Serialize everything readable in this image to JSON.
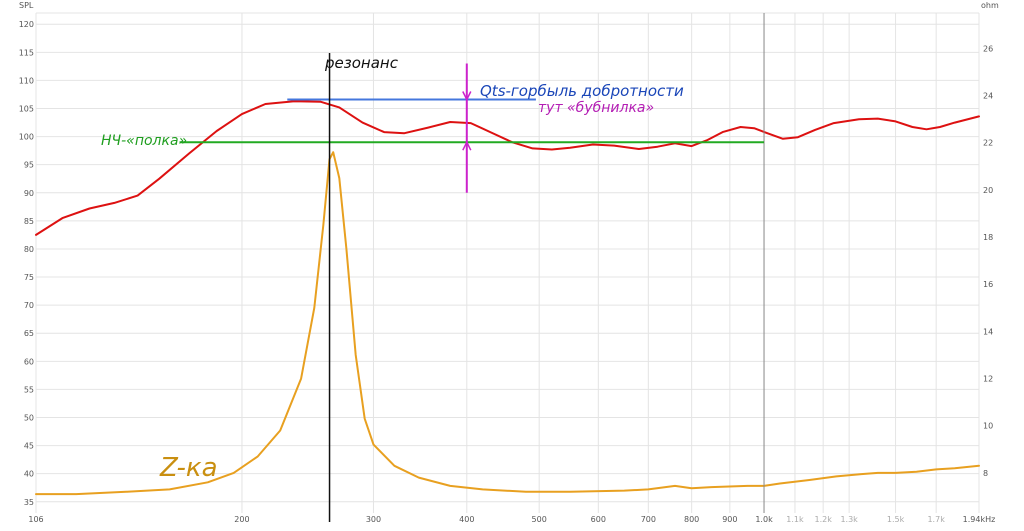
{
  "chart_data": {
    "type": "line",
    "x_scale": "log",
    "xlim": [
      106,
      1940
    ],
    "ylim_left": [
      33,
      122
    ],
    "ylim_right": [
      6.3,
      27.5
    ],
    "ylabel_left": "SPL",
    "ylabel_right": "ohm",
    "grid": true,
    "x_ticks": [
      {
        "v": 106,
        "label": "106",
        "faint": false
      },
      {
        "v": 200,
        "label": "200",
        "faint": false
      },
      {
        "v": 300,
        "label": "300",
        "faint": false
      },
      {
        "v": 400,
        "label": "400",
        "faint": false
      },
      {
        "v": 500,
        "label": "500",
        "faint": false
      },
      {
        "v": 600,
        "label": "600",
        "faint": false
      },
      {
        "v": 700,
        "label": "700",
        "faint": false
      },
      {
        "v": 800,
        "label": "800",
        "faint": false
      },
      {
        "v": 900,
        "label": "900",
        "faint": false
      },
      {
        "v": 1000,
        "label": "1.0k",
        "faint": false
      },
      {
        "v": 1100,
        "label": "1.1k",
        "faint": true
      },
      {
        "v": 1200,
        "label": "1.2k",
        "faint": true
      },
      {
        "v": 1300,
        "label": "1.3k",
        "faint": true
      },
      {
        "v": 1500,
        "label": "1.5k",
        "faint": true
      },
      {
        "v": 1700,
        "label": "1.7k",
        "faint": true
      },
      {
        "v": 1940,
        "label": "1.94kHz",
        "faint": false
      }
    ],
    "y_ticks_left": [
      "35",
      "40",
      "45",
      "50",
      "55",
      "60",
      "65",
      "70",
      "75",
      "80",
      "85",
      "90",
      "95",
      "100",
      "105",
      "110",
      "115",
      "120"
    ],
    "y_ticks_right": [
      "8",
      "10",
      "12",
      "14",
      "16",
      "18",
      "20",
      "22",
      "24",
      "26"
    ],
    "series": [
      {
        "axis": "left",
        "color": "#dd1111",
        "points": [
          [
            106,
            82.5
          ],
          [
            115,
            85.5
          ],
          [
            125,
            87.2
          ],
          [
            135,
            88.2
          ],
          [
            145,
            89.5
          ],
          [
            155,
            92.5
          ],
          [
            170,
            97
          ],
          [
            185,
            101
          ],
          [
            200,
            104
          ],
          [
            215,
            105.8
          ],
          [
            235,
            106.3
          ],
          [
            255,
            106.2
          ],
          [
            270,
            105.2
          ],
          [
            290,
            102.5
          ],
          [
            310,
            100.8
          ],
          [
            330,
            100.6
          ],
          [
            355,
            101.6
          ],
          [
            380,
            102.6
          ],
          [
            405,
            102.4
          ],
          [
            430,
            100.8
          ],
          [
            460,
            99
          ],
          [
            490,
            97.9
          ],
          [
            520,
            97.7
          ],
          [
            550,
            98
          ],
          [
            590,
            98.6
          ],
          [
            630,
            98.4
          ],
          [
            680,
            97.8
          ],
          [
            720,
            98.2
          ],
          [
            760,
            98.8
          ],
          [
            800,
            98.3
          ],
          [
            840,
            99.4
          ],
          [
            880,
            100.8
          ],
          [
            930,
            101.7
          ],
          [
            970,
            101.5
          ],
          [
            1010,
            100.6
          ],
          [
            1060,
            99.6
          ],
          [
            1110,
            99.9
          ],
          [
            1170,
            101.2
          ],
          [
            1240,
            102.4
          ],
          [
            1340,
            103.1
          ],
          [
            1420,
            103.2
          ],
          [
            1500,
            102.7
          ],
          [
            1580,
            101.7
          ],
          [
            1650,
            101.3
          ],
          [
            1720,
            101.7
          ],
          [
            1800,
            102.5
          ],
          [
            1900,
            103.3
          ],
          [
            1940,
            103.6
          ]
        ]
      },
      {
        "axis": "right",
        "color": "#e8a020",
        "points": [
          [
            106,
            7.1
          ],
          [
            120,
            7.1
          ],
          [
            140,
            7.2
          ],
          [
            160,
            7.3
          ],
          [
            180,
            7.6
          ],
          [
            195,
            8.0
          ],
          [
            210,
            8.7
          ],
          [
            225,
            9.8
          ],
          [
            240,
            12.0
          ],
          [
            250,
            15.0
          ],
          [
            257,
            18.5
          ],
          [
            262,
            21.3
          ],
          [
            265,
            21.6
          ],
          [
            270,
            20.5
          ],
          [
            276,
            17.5
          ],
          [
            284,
            13.0
          ],
          [
            292,
            10.3
          ],
          [
            300,
            9.2
          ],
          [
            320,
            8.3
          ],
          [
            345,
            7.8
          ],
          [
            380,
            7.45
          ],
          [
            420,
            7.3
          ],
          [
            480,
            7.2
          ],
          [
            550,
            7.2
          ],
          [
            650,
            7.25
          ],
          [
            700,
            7.3
          ],
          [
            760,
            7.45
          ],
          [
            800,
            7.35
          ],
          [
            850,
            7.4
          ],
          [
            950,
            7.45
          ],
          [
            1000,
            7.45
          ],
          [
            1050,
            7.55
          ],
          [
            1150,
            7.7
          ],
          [
            1250,
            7.85
          ],
          [
            1350,
            7.95
          ],
          [
            1420,
            8.0
          ],
          [
            1500,
            8.0
          ],
          [
            1600,
            8.05
          ],
          [
            1700,
            8.15
          ],
          [
            1800,
            8.2
          ],
          [
            1940,
            8.3
          ]
        ]
      }
    ],
    "annotations": [
      {
        "text": "резонанс",
        "color": "#111111",
        "x": 262
      },
      {
        "text": "Qts-горбыль добротности",
        "color": "#1a46b8"
      },
      {
        "text": "тут «бубнилка»",
        "color": "#b41eb4"
      },
      {
        "text": "НЧ-«полка»",
        "color": "#1f9e1f",
        "y": 99
      },
      {
        "text": "Z-ка",
        "color": "#c98f10"
      }
    ],
    "marker_lines": [
      {
        "kind": "vline",
        "x": 1000,
        "color": "#888888"
      },
      {
        "kind": "hline",
        "y": 106.6,
        "x1": 230,
        "x2": 495,
        "color": "#4477dd"
      },
      {
        "kind": "hline",
        "y": 99,
        "x1": 165,
        "x2": 1000,
        "color": "#22aa22"
      },
      {
        "kind": "vline",
        "x": 400,
        "y1": 90,
        "y2": 113,
        "color": "#cc22cc",
        "arrows": true
      }
    ]
  }
}
